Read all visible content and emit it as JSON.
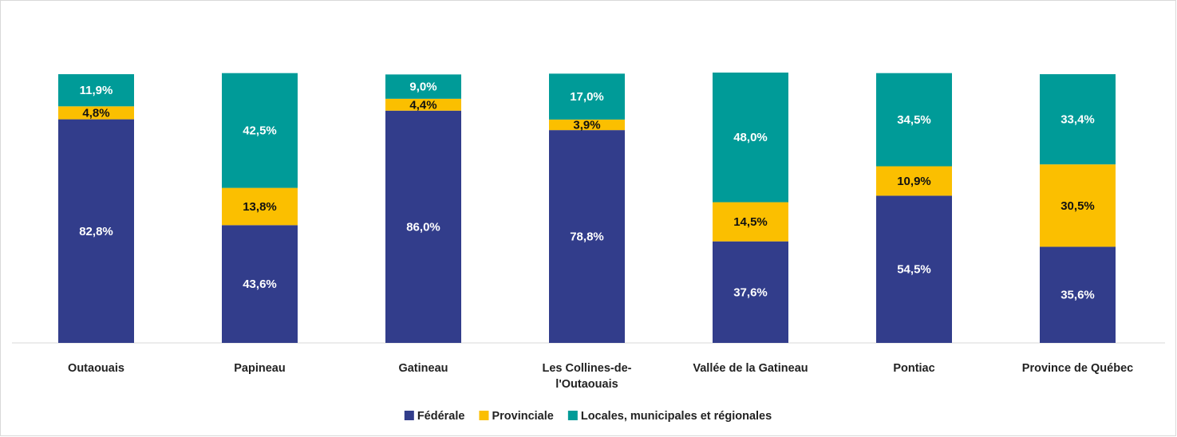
{
  "chart_data": {
    "type": "stacked-bar",
    "categories": [
      "Outaouais",
      "Papineau",
      "Gatineau",
      "Les Collines-de-l'Outaouais",
      "Vallée de la Gatineau",
      "Pontiac",
      "Province de Québec"
    ],
    "series": [
      {
        "name": "Fédérale",
        "color": "#323d8b",
        "label_color": "#ffffff",
        "values": [
          82.8,
          43.6,
          86.0,
          78.8,
          37.6,
          54.5,
          35.6
        ],
        "value_labels": [
          "82,8%",
          "43,6%",
          "86,0%",
          "78,8%",
          "37,6%",
          "54,5%",
          "35,6%"
        ]
      },
      {
        "name": "Provinciale",
        "color": "#fbbf00",
        "label_color": "#111111",
        "values": [
          4.8,
          13.8,
          4.4,
          3.9,
          14.5,
          10.9,
          30.5
        ],
        "value_labels": [
          "4,8%",
          "13,8%",
          "4,4%",
          "3,9%",
          "14,5%",
          "10,9%",
          "30,5%"
        ]
      },
      {
        "name": "Locales, municipales et régionales",
        "color": "#009b98",
        "label_color": "#ffffff",
        "values": [
          11.9,
          42.5,
          9.0,
          17.0,
          48.0,
          34.5,
          33.4
        ],
        "value_labels": [
          "11,9%",
          "42,5%",
          "9,0%",
          "17,0%",
          "48,0%",
          "34,5%",
          "33,4%"
        ]
      }
    ],
    "legend": "bottom"
  }
}
